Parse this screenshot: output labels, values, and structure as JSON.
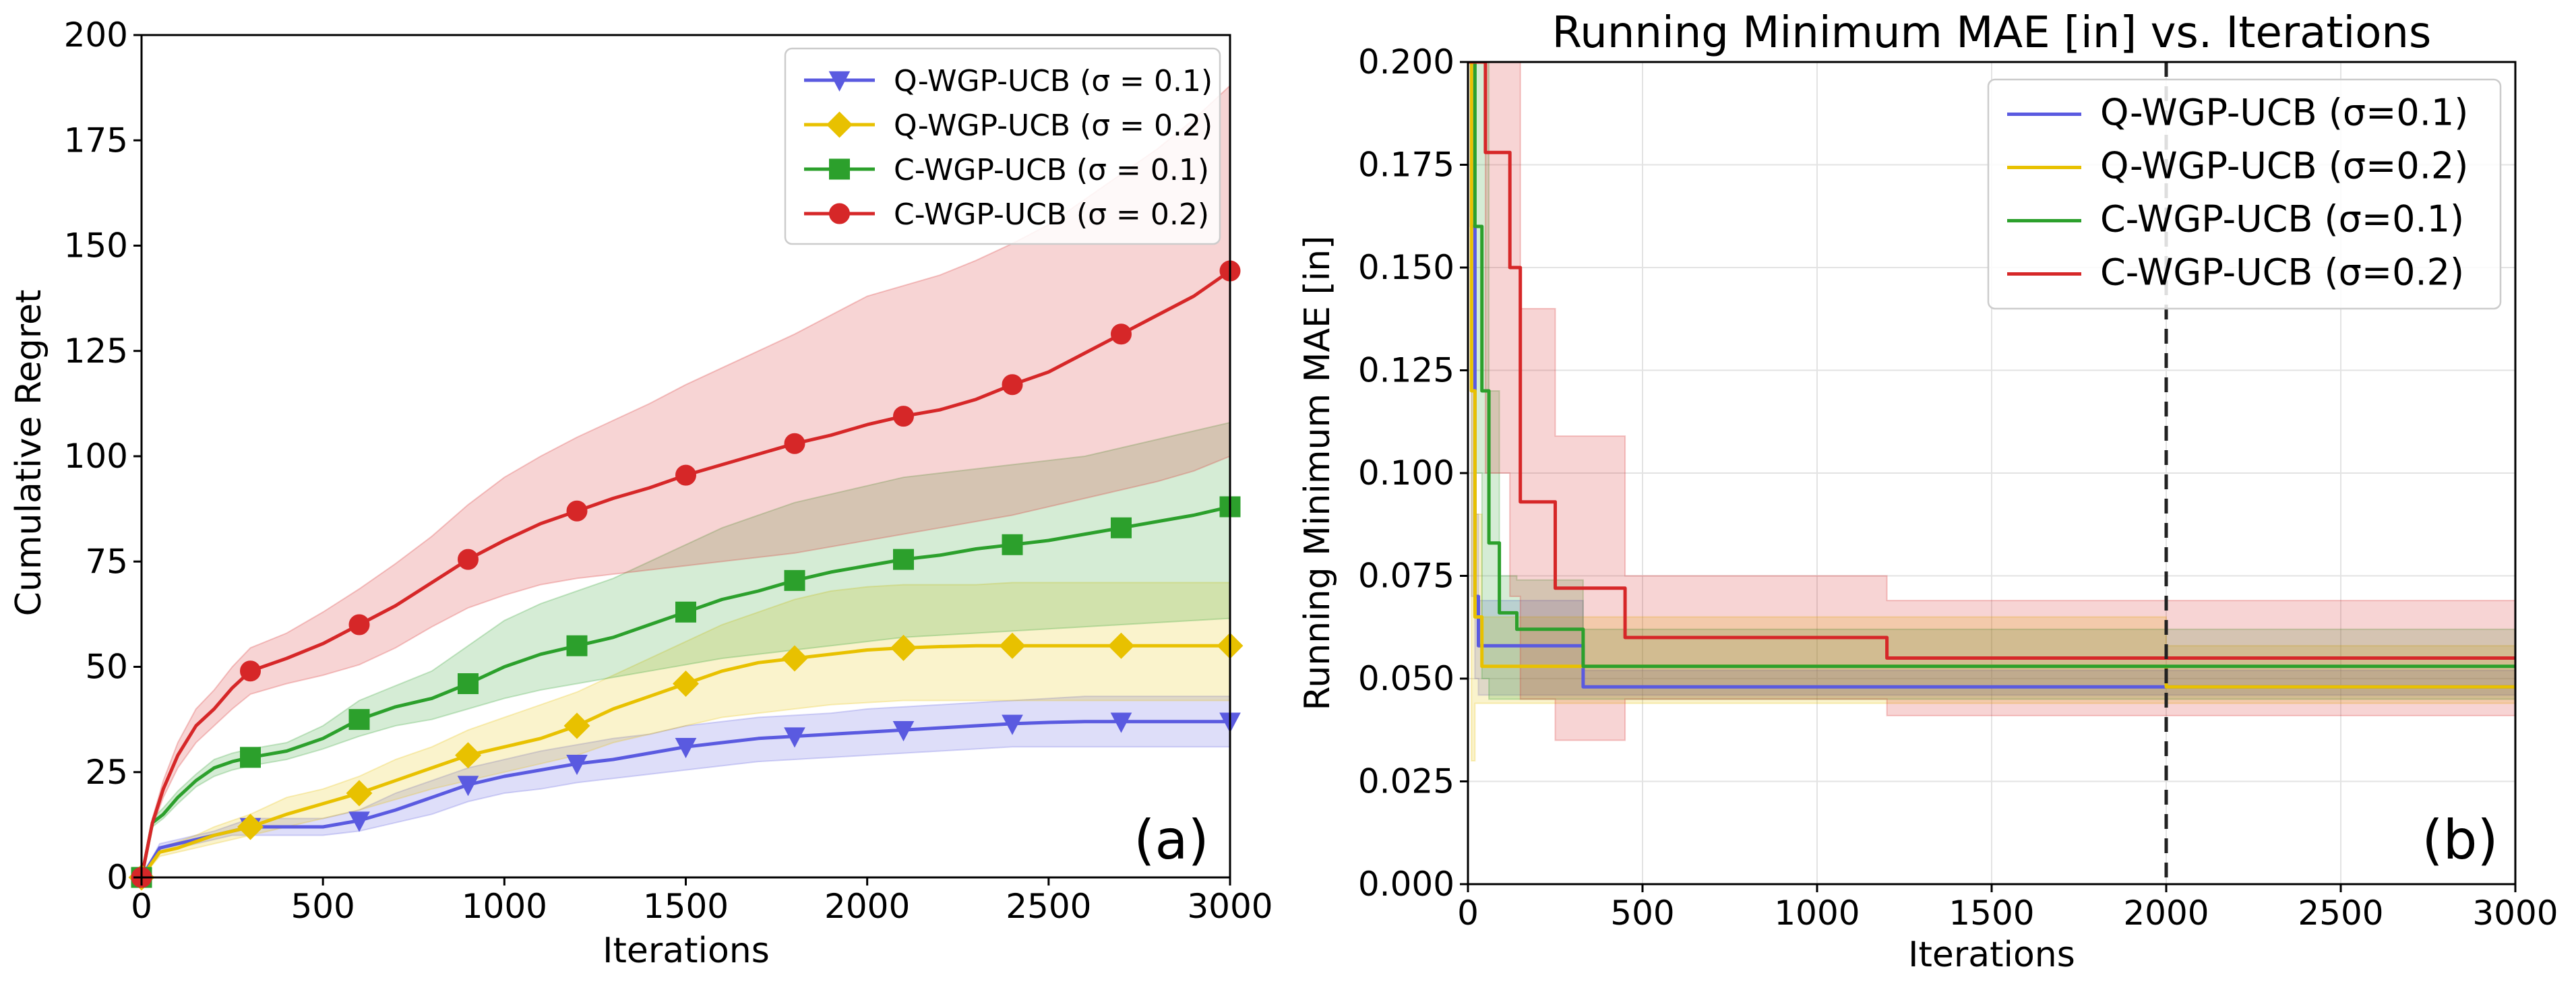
{
  "chart_data": [
    {
      "type": "line",
      "title": "",
      "xlabel": "Iterations",
      "ylabel": "Cumulative Regret",
      "xlim": [
        0,
        3000
      ],
      "ylim": [
        0,
        200
      ],
      "xticks": [
        "0",
        "500",
        "1000",
        "1500",
        "2000",
        "2500",
        "3000"
      ],
      "yticks": [
        "0",
        "25",
        "50",
        "75",
        "100",
        "125",
        "150",
        "175",
        "200"
      ],
      "grid": false,
      "legend": "top-right",
      "panel_label": "(a)",
      "series": [
        {
          "name": "Q-WGP-UCB (σ = 0.1)",
          "color": "#5a5ae0",
          "marker": "triangle-down",
          "x": [
            0,
            50,
            100,
            150,
            200,
            250,
            300,
            400,
            500,
            600,
            700,
            800,
            900,
            1000,
            1100,
            1200,
            1300,
            1400,
            1500,
            1600,
            1700,
            1800,
            1900,
            2000,
            2100,
            2200,
            2300,
            2400,
            2500,
            2600,
            2700,
            2800,
            2900,
            3000
          ],
          "y": [
            0,
            7,
            8,
            9,
            10,
            11,
            12,
            12,
            12,
            13.5,
            16,
            19,
            22,
            24,
            25.5,
            27,
            28,
            29.5,
            31,
            32,
            33,
            33.5,
            34,
            34.5,
            35,
            35.5,
            36,
            36.5,
            36.8,
            37,
            37,
            37,
            37,
            37
          ],
          "lower": [
            0,
            6,
            7,
            8,
            9,
            10,
            10,
            10,
            10,
            11,
            13,
            15,
            18,
            20,
            21,
            22.5,
            23.5,
            24.5,
            25.5,
            26.5,
            27.5,
            28,
            28.5,
            29,
            29.5,
            30,
            30.5,
            31,
            31,
            31,
            31,
            31,
            31,
            31
          ],
          "upper": [
            0,
            8,
            9,
            10,
            11,
            12.5,
            14,
            14,
            14,
            16,
            20,
            23,
            26,
            28,
            30,
            31.5,
            33,
            34,
            36,
            37,
            38,
            38.5,
            39,
            40,
            40.5,
            41,
            41.5,
            42,
            42.5,
            43,
            43,
            43,
            43,
            43
          ]
        },
        {
          "name": "Q-WGP-UCB (σ = 0.2)",
          "color": "#e8c100",
          "marker": "diamond",
          "x": [
            0,
            50,
            100,
            150,
            200,
            250,
            300,
            400,
            500,
            600,
            700,
            800,
            900,
            1000,
            1100,
            1200,
            1300,
            1400,
            1500,
            1600,
            1700,
            1800,
            1900,
            2000,
            2100,
            2200,
            2300,
            2400,
            2500,
            2600,
            2700,
            2800,
            2900,
            3000
          ],
          "y": [
            0,
            6,
            7,
            8.5,
            10,
            11,
            12,
            15,
            17.5,
            20,
            23,
            26,
            29,
            31,
            33,
            36,
            40,
            43,
            46,
            49,
            51,
            52,
            53,
            54,
            54.5,
            54.8,
            55,
            55,
            55,
            55,
            55,
            55,
            55,
            55
          ],
          "lower": [
            0,
            5,
            6,
            7,
            8,
            9,
            10,
            12,
            14,
            16,
            18.5,
            21,
            23,
            25,
            27,
            29,
            32,
            34,
            36,
            38,
            39,
            40,
            41,
            41.5,
            42,
            42,
            42,
            42,
            42,
            42,
            42,
            42,
            42,
            42
          ],
          "upper": [
            0,
            7,
            8.5,
            10,
            12,
            13.5,
            15,
            19,
            21,
            24,
            28,
            31,
            35,
            38,
            41,
            44,
            48,
            52,
            56,
            60,
            63,
            66,
            68,
            69,
            69.5,
            69.5,
            69.5,
            70,
            70,
            70,
            70,
            70,
            70,
            70
          ]
        },
        {
          "name": "C-WGP-UCB (σ = 0.1)",
          "color": "#2ca02c",
          "marker": "square",
          "x": [
            0,
            30,
            60,
            100,
            150,
            200,
            250,
            300,
            400,
            500,
            600,
            700,
            800,
            900,
            1000,
            1100,
            1200,
            1300,
            1400,
            1500,
            1600,
            1700,
            1800,
            1900,
            2000,
            2100,
            2200,
            2300,
            2400,
            2500,
            2600,
            2700,
            2800,
            2900,
            3000
          ],
          "y": [
            0,
            13,
            15,
            19,
            23,
            26,
            27.5,
            28.5,
            30,
            33,
            37.5,
            40.5,
            42.5,
            46,
            50,
            53,
            55,
            57,
            60,
            63,
            66,
            68,
            70.5,
            72.5,
            74,
            75.5,
            76.5,
            78,
            79,
            80,
            81.5,
            83,
            84.5,
            86,
            88
          ],
          "lower": [
            0,
            12,
            14,
            17.5,
            21.5,
            24,
            25.5,
            26.5,
            28,
            30.5,
            33.5,
            36,
            37.5,
            40,
            42.5,
            44.5,
            46,
            47.5,
            49,
            50.5,
            52,
            53,
            54,
            55,
            56,
            57,
            57.5,
            58,
            58.5,
            59,
            59.5,
            60,
            60.5,
            61,
            61.5
          ],
          "upper": [
            0,
            14,
            16.5,
            20.5,
            24.5,
            28,
            29.5,
            30.5,
            32,
            36,
            42,
            45.5,
            49,
            55,
            61,
            65,
            68,
            71,
            75,
            79,
            83,
            86,
            89,
            91,
            93,
            95,
            96,
            97,
            98,
            99,
            100,
            102,
            104,
            106,
            108
          ]
        },
        {
          "name": "C-WGP-UCB (σ = 0.2)",
          "color": "#d62728",
          "marker": "circle",
          "x": [
            0,
            30,
            60,
            100,
            150,
            200,
            250,
            300,
            400,
            500,
            600,
            700,
            800,
            900,
            1000,
            1100,
            1200,
            1300,
            1400,
            1500,
            1600,
            1700,
            1800,
            1900,
            2000,
            2100,
            2200,
            2300,
            2400,
            2500,
            2600,
            2700,
            2800,
            2900,
            3000
          ],
          "y": [
            0,
            13,
            21,
            29,
            36,
            40,
            45,
            49,
            52,
            55.5,
            60,
            64.5,
            70,
            75.5,
            80,
            84,
            87,
            90,
            92.5,
            95.5,
            98,
            100.5,
            103,
            105,
            107.5,
            109.5,
            111,
            113.5,
            117,
            120,
            124.5,
            129,
            133.5,
            138,
            144
          ],
          "lower": [
            0,
            12,
            19,
            26,
            32,
            36,
            40,
            43.5,
            46,
            48,
            50.5,
            54.5,
            59.5,
            64,
            67,
            69.5,
            71,
            72,
            73,
            74,
            75,
            76,
            77,
            78.5,
            80,
            81.5,
            83,
            84.5,
            86,
            88,
            90,
            92,
            94,
            96.5,
            100
          ],
          "upper": [
            0,
            14,
            23,
            32,
            40,
            44.5,
            50,
            54.5,
            58,
            63,
            68.5,
            74.5,
            81,
            88.5,
            95,
            100,
            104.5,
            108.5,
            112.5,
            117,
            121,
            125,
            129,
            133.5,
            138,
            140.5,
            143,
            146.5,
            150.5,
            155,
            161,
            167,
            173,
            180,
            188
          ]
        }
      ]
    },
    {
      "type": "line",
      "title": "Running Minimum MAE [in] vs. Iterations",
      "xlabel": "Iterations",
      "ylabel": "Running Minimum MAE [in]",
      "xlim": [
        0,
        3000
      ],
      "ylim": [
        0,
        0.2
      ],
      "xticks": [
        "0",
        "500",
        "1000",
        "1500",
        "2000",
        "2500",
        "3000"
      ],
      "yticks": [
        "0.000",
        "0.025",
        "0.050",
        "0.075",
        "0.100",
        "0.125",
        "0.150",
        "0.175",
        "0.200"
      ],
      "grid": true,
      "legend": "top-right",
      "vline": 2000,
      "panel_label": "(b)",
      "series": [
        {
          "name": "Q-WGP-UCB (σ=0.1)",
          "color": "#5a5ae0",
          "step": true,
          "x": [
            0,
            10,
            20,
            30,
            330,
            1980,
            2000,
            3000
          ],
          "y": [
            0.2,
            0.16,
            0.07,
            0.058,
            0.048,
            0.048,
            0.048,
            0.048
          ],
          "lower": [
            0.2,
            0.07,
            0.05,
            0.046,
            0.046,
            0.046,
            0.046,
            0.046
          ],
          "upper": [
            0.2,
            0.2,
            0.09,
            0.069,
            0.052,
            0.052,
            0.052,
            0.052
          ]
        },
        {
          "name": "Q-WGP-UCB (σ=0.2)",
          "color": "#e8c100",
          "step": true,
          "x": [
            0,
            10,
            20,
            40,
            300,
            1980,
            2000,
            3000
          ],
          "y": [
            0.2,
            0.12,
            0.065,
            0.053,
            0.053,
            0.053,
            0.048,
            0.048
          ],
          "lower": [
            0.2,
            0.03,
            0.044,
            0.044,
            0.044,
            0.044,
            0.044,
            0.044
          ],
          "upper": [
            0.2,
            0.2,
            0.09,
            0.065,
            0.065,
            0.065,
            0.058,
            0.058
          ]
        },
        {
          "name": "C-WGP-UCB (σ=0.1)",
          "color": "#2ca02c",
          "step": true,
          "x": [
            0,
            20,
            40,
            60,
            90,
            140,
            200,
            330,
            340,
            3000
          ],
          "y": [
            0.2,
            0.16,
            0.12,
            0.083,
            0.066,
            0.062,
            0.062,
            0.053,
            0.053,
            0.053
          ],
          "lower": [
            0.2,
            0.1,
            0.05,
            0.045,
            0.045,
            0.045,
            0.045,
            0.045,
            0.045,
            0.045
          ],
          "upper": [
            0.2,
            0.2,
            0.2,
            0.12,
            0.075,
            0.074,
            0.074,
            0.062,
            0.062,
            0.062
          ]
        },
        {
          "name": "C-WGP-UCB (σ=0.2)",
          "color": "#d62728",
          "step": true,
          "x": [
            0,
            50,
            120,
            150,
            250,
            300,
            450,
            1200,
            3000
          ],
          "y": [
            0.2,
            0.178,
            0.15,
            0.093,
            0.072,
            0.072,
            0.06,
            0.055,
            0.055
          ],
          "lower": [
            0.2,
            0.1,
            0.07,
            0.045,
            0.035,
            0.035,
            0.045,
            0.041,
            0.041
          ],
          "upper": [
            0.2,
            0.2,
            0.2,
            0.14,
            0.109,
            0.109,
            0.075,
            0.069,
            0.069
          ]
        }
      ]
    }
  ]
}
